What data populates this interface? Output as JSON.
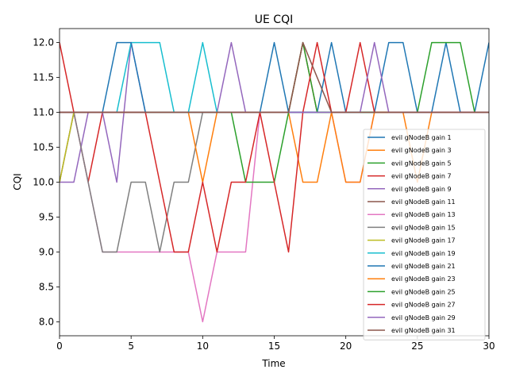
{
  "chart_data": {
    "type": "line",
    "title": "UE CQI",
    "xlabel": "Time",
    "ylabel": "CQI",
    "xlim": [
      0,
      30
    ],
    "ylim": [
      7.8,
      12.2
    ],
    "xticks": [
      0,
      5,
      10,
      15,
      20,
      25,
      30
    ],
    "yticks": [
      8.0,
      8.5,
      9.0,
      9.5,
      10.0,
      10.5,
      11.0,
      11.5,
      12.0
    ],
    "ytick_labels": [
      "8.0",
      "8.5",
      "9.0",
      "9.5",
      "10.0",
      "10.5",
      "11.0",
      "11.5",
      "12.0"
    ],
    "grid": false,
    "legend_position": "lower-right",
    "x": [
      0,
      1,
      2,
      3,
      4,
      5,
      6,
      7,
      8,
      9,
      10,
      11,
      12,
      13,
      14,
      15,
      16,
      17,
      18,
      19,
      20,
      21,
      22,
      23,
      24,
      25,
      26,
      27,
      28,
      29,
      30
    ],
    "series": [
      {
        "name": "evil gNodeB gain 1",
        "color": "#1f77b4",
        "values": [
          11,
          11,
          11,
          11,
          11,
          11,
          11,
          11,
          11,
          11,
          11,
          11,
          11,
          11,
          11,
          11,
          11,
          11,
          11,
          11,
          11,
          11,
          11,
          11,
          11,
          11,
          11,
          11,
          11,
          11,
          11
        ]
      },
      {
        "name": "evil gNodeB gain 3",
        "color": "#ff7f0e",
        "values": [
          11,
          11,
          11,
          11,
          11,
          11,
          11,
          11,
          11,
          11,
          11,
          11,
          11,
          11,
          11,
          11,
          11,
          11,
          11,
          11,
          11,
          11,
          11,
          11,
          11,
          11,
          11,
          11,
          11,
          11,
          11
        ]
      },
      {
        "name": "evil gNodeB gain 5",
        "color": "#2ca02c",
        "values": [
          11,
          11,
          11,
          11,
          11,
          11,
          11,
          11,
          11,
          11,
          11,
          11,
          11,
          11,
          11,
          11,
          11,
          11,
          11,
          11,
          11,
          11,
          11,
          11,
          11,
          11,
          11,
          11,
          11,
          11,
          11
        ]
      },
      {
        "name": "evil gNodeB gain 7",
        "color": "#d62728",
        "values": [
          12,
          11,
          10,
          11,
          11,
          11,
          11,
          11,
          11,
          11,
          11,
          11,
          11,
          11,
          11,
          11,
          11,
          12,
          11,
          11,
          11,
          11,
          11,
          11,
          11,
          11,
          11,
          11,
          11,
          11,
          11
        ]
      },
      {
        "name": "evil gNodeB gain 9",
        "color": "#9467bd",
        "values": [
          10,
          10,
          11,
          11,
          10,
          12,
          11,
          11,
          11,
          11,
          11,
          11,
          12,
          11,
          11,
          11,
          11,
          11,
          11,
          11,
          11,
          11,
          11,
          11,
          11,
          11,
          11,
          11,
          11,
          11,
          11
        ]
      },
      {
        "name": "evil gNodeB gain 11",
        "color": "#8c564b",
        "values": [
          11,
          11,
          11,
          11,
          11,
          11,
          11,
          11,
          11,
          11,
          11,
          11,
          11,
          11,
          11,
          11,
          11,
          11,
          11,
          11,
          11,
          11,
          11,
          11,
          11,
          11,
          11,
          11,
          11,
          11,
          11
        ]
      },
      {
        "name": "evil gNodeB gain 13",
        "color": "#e377c2",
        "values": [
          10,
          11,
          10,
          9,
          9,
          9,
          9,
          9,
          9,
          9,
          8,
          9,
          9,
          9,
          11,
          11,
          11,
          11,
          11,
          11,
          10,
          10,
          11,
          11,
          11,
          11,
          11,
          11,
          11,
          11,
          11
        ]
      },
      {
        "name": "evil gNodeB gain 15",
        "color": "#7f7f7f",
        "values": [
          10,
          11,
          10,
          9,
          9,
          10,
          10,
          9,
          10,
          10,
          11,
          11,
          11,
          11,
          11,
          11,
          11,
          11,
          11,
          11,
          11,
          11,
          11,
          11,
          11,
          11,
          11,
          11,
          11,
          11,
          11
        ]
      },
      {
        "name": "evil gNodeB gain 17",
        "color": "#bcbd22",
        "values": [
          10,
          11,
          11,
          11,
          11,
          11,
          11,
          11,
          11,
          11,
          11,
          11,
          11,
          11,
          11,
          11,
          11,
          11,
          11,
          11,
          11,
          11,
          11,
          11,
          11,
          11,
          11,
          11,
          11,
          11,
          11
        ]
      },
      {
        "name": "evil gNodeB gain 19",
        "color": "#17becf",
        "values": [
          11,
          11,
          11,
          11,
          11,
          12,
          12,
          12,
          11,
          11,
          12,
          11,
          11,
          11,
          11,
          11,
          11,
          11,
          11,
          11,
          11,
          11,
          11,
          11,
          11,
          11,
          11,
          11,
          11,
          11,
          11
        ]
      },
      {
        "name": "evil gNodeB gain 21",
        "color": "#1f77b4",
        "values": [
          11,
          11,
          11,
          11,
          12,
          12,
          11,
          11,
          11,
          11,
          11,
          11,
          11,
          11,
          11,
          12,
          11,
          11,
          11,
          12,
          11,
          11,
          11,
          12,
          12,
          11,
          11,
          12,
          11,
          11,
          12
        ]
      },
      {
        "name": "evil gNodeB gain 23",
        "color": "#ff7f0e",
        "values": [
          11,
          11,
          11,
          11,
          11,
          11,
          11,
          11,
          11,
          11,
          10,
          11,
          11,
          11,
          11,
          11,
          11,
          10,
          10,
          11,
          10,
          10,
          11,
          11,
          11,
          10,
          11,
          11,
          11,
          11,
          11
        ]
      },
      {
        "name": "evil gNodeB gain 25",
        "color": "#2ca02c",
        "values": [
          11,
          11,
          11,
          11,
          11,
          11,
          11,
          11,
          11,
          11,
          11,
          11,
          11,
          10,
          10,
          10,
          11,
          12,
          11,
          11,
          11,
          11,
          11,
          11,
          11,
          11,
          12,
          12,
          12,
          11,
          11
        ]
      },
      {
        "name": "evil gNodeB gain 27",
        "color": "#d62728",
        "values": [
          11,
          11,
          11,
          11,
          11,
          11,
          11,
          10,
          9,
          9,
          10,
          9,
          10,
          10,
          11,
          10,
          9,
          11,
          12,
          11,
          11,
          12,
          11,
          11,
          11,
          11,
          11,
          11,
          11,
          11,
          11
        ]
      },
      {
        "name": "evil gNodeB gain 29",
        "color": "#9467bd",
        "values": [
          11,
          11,
          11,
          11,
          11,
          11,
          11,
          11,
          11,
          11,
          11,
          11,
          11,
          11,
          11,
          11,
          11,
          11,
          11,
          11,
          11,
          11,
          12,
          11,
          11,
          11,
          11,
          11,
          11,
          11,
          11
        ]
      },
      {
        "name": "evil gNodeB gain 31",
        "color": "#8c564b",
        "values": [
          11,
          11,
          11,
          11,
          11,
          11,
          11,
          11,
          11,
          11,
          11,
          11,
          11,
          11,
          11,
          11,
          11,
          12,
          11.5,
          11,
          11,
          11,
          11,
          11,
          11,
          11,
          11,
          11,
          11,
          11,
          11
        ]
      }
    ]
  }
}
